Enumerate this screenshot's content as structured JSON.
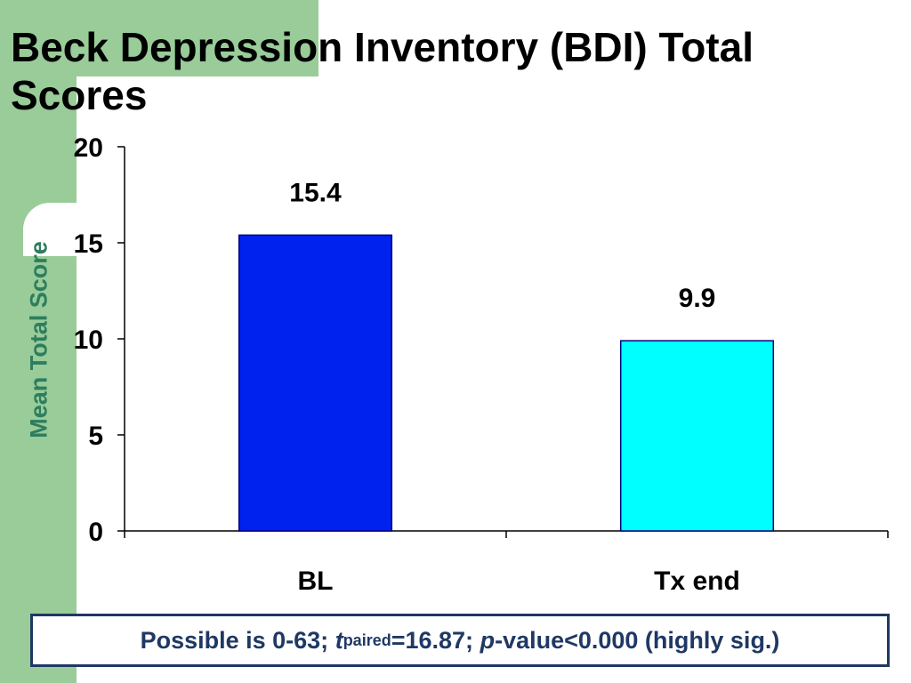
{
  "title": "Beck Depression Inventory (BDI) Total Scores",
  "footnote": {
    "prefix": "Possible is 0-63; ",
    "t_symbol": "t",
    "t_subscript": "paired",
    "t_value": "=16.87; ",
    "p_symbol": "p",
    "p_rest": "-value<0.000 (highly sig.)"
  },
  "colors": {
    "background_accent": "#99cc99",
    "ylabel": "#2e7d5e",
    "footnote": "#1f3864"
  },
  "chart_data": {
    "type": "bar",
    "title": "Beck Depression Inventory (BDI) Total Scores",
    "xlabel": "",
    "ylabel": "Mean Total Score",
    "categories": [
      "BL",
      "Tx end"
    ],
    "values": [
      15.4,
      9.9
    ],
    "value_labels": [
      "15.4",
      "9.9"
    ],
    "bar_colors": [
      "#0022ee",
      "#00ffff"
    ],
    "ylim": [
      0,
      20
    ],
    "yticks": [
      0,
      5,
      10,
      15,
      20
    ],
    "ytick_labels": [
      "0",
      "5",
      "10",
      "15",
      "20"
    ],
    "grid": false,
    "legend": "none"
  }
}
